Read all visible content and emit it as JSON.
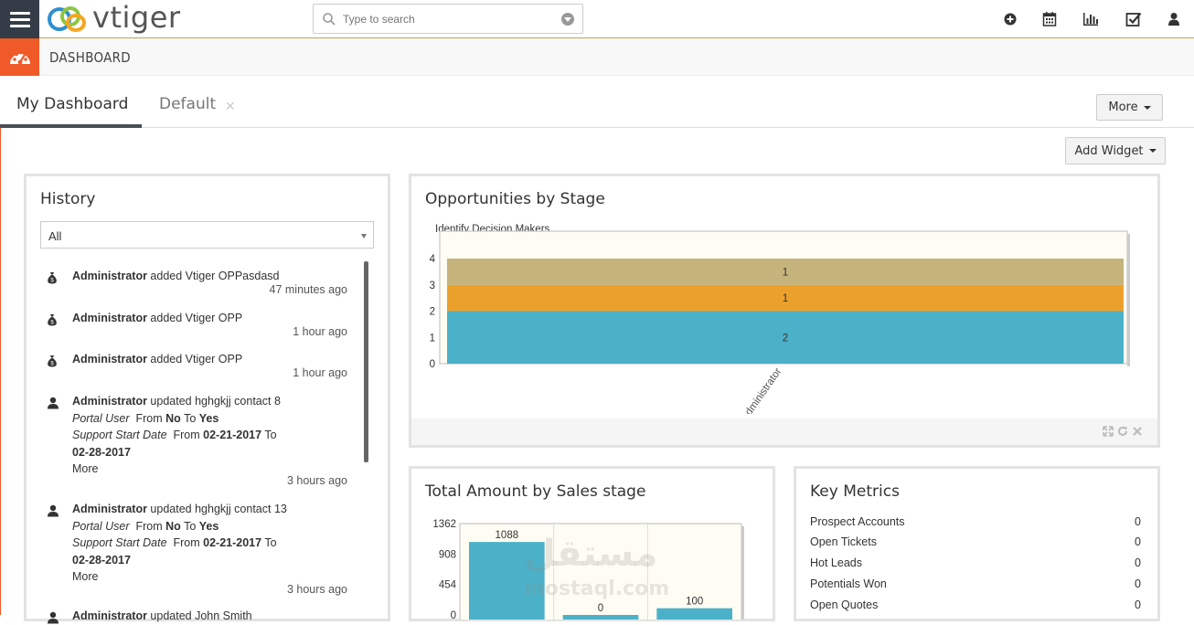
{
  "app": {
    "logo_text": "vtiger",
    "module_title": "DASHBOARD"
  },
  "search": {
    "placeholder": "Type to search"
  },
  "topbar_icons": [
    "plus-circle-icon",
    "calendar-icon",
    "bar-chart-icon",
    "checkbox-icon",
    "user-icon"
  ],
  "tabs": [
    {
      "label": "My Dashboard",
      "active": true
    },
    {
      "label": "Default",
      "active": false
    }
  ],
  "buttons": {
    "more": "More",
    "add_widget": "Add Widget"
  },
  "history": {
    "title": "History",
    "filter_value": "All",
    "items": [
      {
        "icon": "money-bag-icon",
        "actor": "Administrator",
        "action": " added Vtiger OPPasdasd",
        "time": "47 minutes ago"
      },
      {
        "icon": "money-bag-icon",
        "actor": "Administrator",
        "action": " added Vtiger OPP",
        "time": "1 hour ago"
      },
      {
        "icon": "money-bag-icon",
        "actor": "Administrator",
        "action": " added Vtiger OPP",
        "time": "1 hour ago"
      },
      {
        "icon": "contact-icon",
        "actor": "Administrator",
        "action": " updated hghgkjj contact 8",
        "field1_name": "Portal User",
        "field1_from": "No",
        "field1_to": "Yes",
        "field2_name": "Support Start Date",
        "field2_from": "02-21-2017",
        "field2_to": "02-28-2017",
        "from_label": "From",
        "to_label": "To",
        "more": "More",
        "time": "3 hours ago"
      },
      {
        "icon": "contact-icon",
        "actor": "Administrator",
        "action": " updated hghgkjj contact 13",
        "field1_name": "Portal User",
        "field1_from": "No",
        "field1_to": "Yes",
        "field2_name": "Support Start Date",
        "field2_from": "02-21-2017",
        "field2_to": "02-28-2017",
        "from_label": "From",
        "to_label": "To",
        "more": "More",
        "time": "3 hours ago"
      },
      {
        "icon": "contact-icon",
        "actor": "Administrator",
        "action": " updated John Smith"
      }
    ]
  },
  "opp_widget": {
    "title": "Opportunities by Stage",
    "legend_visible": "Identify Decision Makers",
    "footer_icons": [
      "expand-icon",
      "refresh-icon",
      "close-icon"
    ]
  },
  "total_widget": {
    "title": "Total Amount by Sales stage"
  },
  "metrics_widget": {
    "title": "Key Metrics",
    "rows": [
      {
        "label": "Prospect Accounts",
        "value": "0"
      },
      {
        "label": "Open Tickets",
        "value": "0"
      },
      {
        "label": "Hot Leads",
        "value": "0"
      },
      {
        "label": "Potentials Won",
        "value": "0"
      },
      {
        "label": "Open Quotes",
        "value": "0"
      }
    ]
  },
  "watermark": {
    "arabic": "مستقل",
    "latin": "mostaql.com"
  },
  "chart_data": [
    {
      "type": "bar",
      "stacked": true,
      "categories": [
        "Administrator"
      ],
      "yticks": [
        "0",
        "1",
        "2",
        "3",
        "4"
      ],
      "series": [
        {
          "values": [
            2
          ],
          "color": "#4bb1c8"
        },
        {
          "values": [
            1
          ],
          "color": "#eba02b"
        },
        {
          "values": [
            1
          ],
          "color": "#c5b37c"
        }
      ],
      "ylim": [
        0,
        4
      ],
      "grid": false
    },
    {
      "type": "bar",
      "categories": [
        "",
        "",
        ""
      ],
      "values": [
        1088,
        0,
        100
      ],
      "yticks": [
        "0",
        "454",
        "908",
        "1362"
      ],
      "ylim": [
        0,
        1362
      ],
      "color": "#4bb1c8",
      "grid": true
    }
  ]
}
